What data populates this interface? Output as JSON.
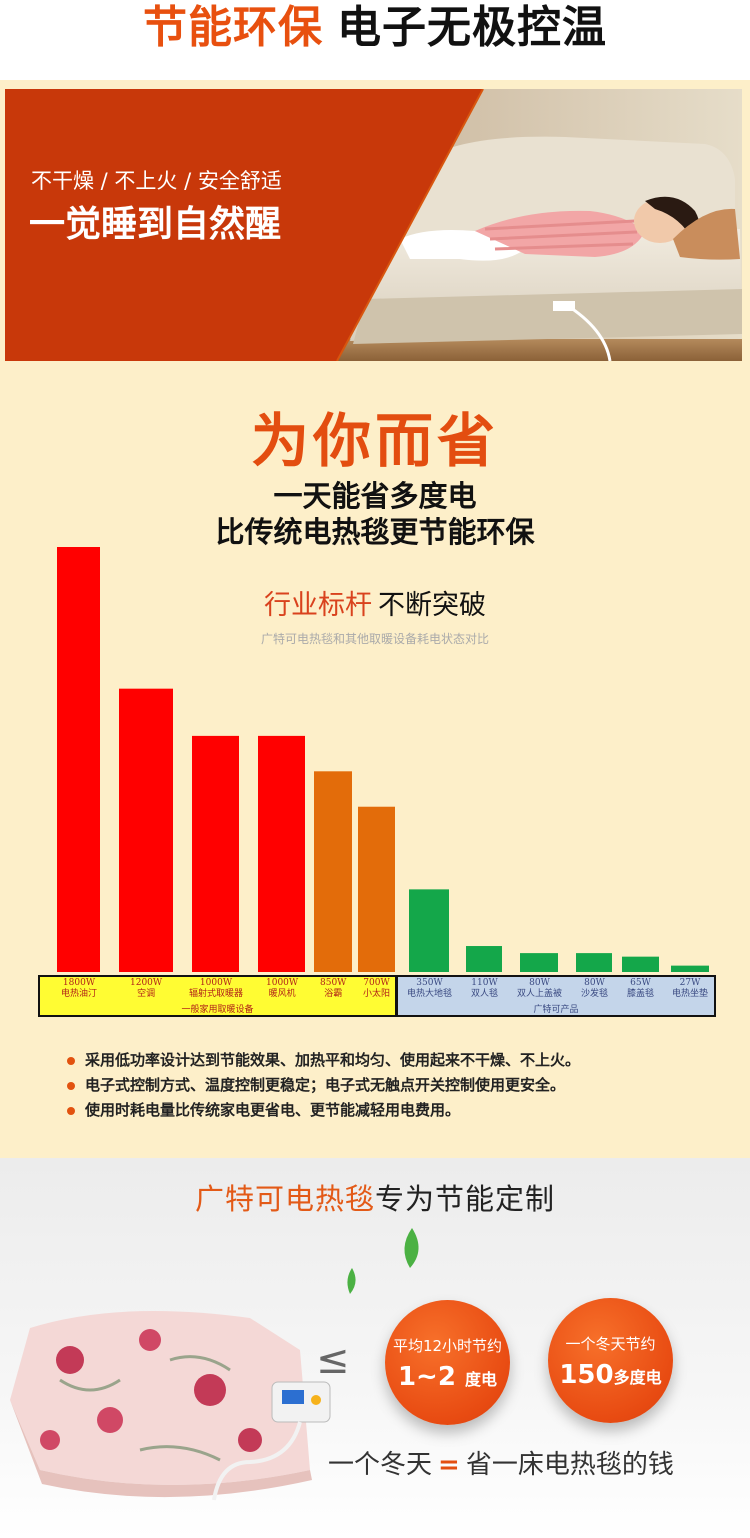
{
  "header": {
    "title_highlight": "节能环保",
    "title_rest": "电子无极控温"
  },
  "hero": {
    "subtitle": "不干燥 / 不上火 / 安全舒适",
    "headline": "一觉睡到自然醒"
  },
  "save": {
    "title": "为你而省",
    "line1": "一天能省多度电",
    "line2": "比传统电热毯更节能环保"
  },
  "chart_data": {
    "type": "bar",
    "title_part1": "行业标杆",
    "title_part2": "不断突破",
    "subtitle": "广特可电热毯和其他取暖设备耗电状态对比",
    "ylabel": "",
    "xlabel": "",
    "ylim": [
      0,
      1800
    ],
    "categories": [
      "电热油汀",
      "空调",
      "辐射式取暖器",
      "暖风机",
      "浴霸",
      "小太阳",
      "电热大地毯",
      "双人毯",
      "双人上盖被",
      "沙发毯",
      "膝盖毯",
      "电热坐垫"
    ],
    "value_labels": [
      "1800W",
      "1200W",
      "1000W",
      "1000W",
      "850W",
      "700W",
      "350W",
      "110W",
      "80W",
      "80W",
      "65W",
      "27W"
    ],
    "values": [
      1800,
      1200,
      1000,
      1000,
      850,
      700,
      350,
      110,
      80,
      80,
      65,
      27
    ],
    "groups": [
      {
        "name": "一般家用取暖设备",
        "count": 6,
        "bar_colors": [
          "#ff0000",
          "#ff0000",
          "#ff0000",
          "#ff0000",
          "#e36c0a",
          "#e36c0a"
        ]
      },
      {
        "name": "广特可产品",
        "count": 6,
        "bar_colors": [
          "#14a74a",
          "#14a74a",
          "#14a74a",
          "#14a74a",
          "#14a74a",
          "#14a74a"
        ]
      }
    ]
  },
  "bullets": [
    "采用低功率设计达到节能效果、加热平和均匀、使用起来不干燥、不上火。",
    "电子式控制方式、温度控制更稳定；电子式无触点开关控制使用更安全。",
    "使用时耗电量比传统家电更省电、更节能减轻用电费用。"
  ],
  "bottom": {
    "title_highlight": "广特可电热毯",
    "title_rest": "专为节能定制",
    "lte_symbol": "≤",
    "badge_left": {
      "label": "平均12小时节约",
      "value": "1~2",
      "unit": "度电"
    },
    "badge_right": {
      "label": "一个冬天节约",
      "value": "150",
      "unit": "多度电"
    },
    "equation_left": "一个冬天",
    "equation_eq": "=",
    "equation_right": "省一床电热毯的钱"
  },
  "colors": {
    "accent_orange": "#e34d10",
    "cream_background": "#fdefc9",
    "hero_red": "#c8380a",
    "bar_red": "#ff0000",
    "bar_orange": "#e36c0a",
    "bar_green": "#14a74a",
    "legend_yellow": "#fffc33",
    "legend_blue": "#c4d5ea"
  }
}
